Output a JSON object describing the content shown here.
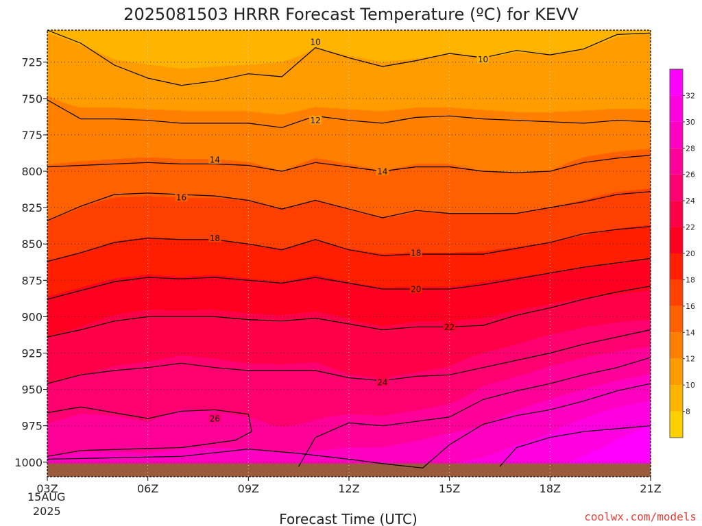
{
  "chart_data": {
    "type": "heatmap",
    "title": "2025081503 HRRR Forecast Temperature (ºC) for KEVV",
    "xlabel": "Forecast Time (UTC)",
    "ylabel": "",
    "credit": "coolwx.com/models",
    "x_ticks": [
      "03Z",
      "06Z",
      "09Z",
      "12Z",
      "15Z",
      "18Z",
      "21Z"
    ],
    "x_first_date": [
      "15AUG",
      "2025"
    ],
    "x_hours": [
      3,
      21
    ],
    "y_ticks": [
      "725",
      "750",
      "775",
      "800",
      "825",
      "850",
      "875",
      "900",
      "925",
      "950",
      "975",
      "1000"
    ],
    "y_range_hpa": [
      703,
      1010
    ],
    "colorbar_ticks": [
      "8",
      "10",
      "12",
      "14",
      "16",
      "18",
      "20",
      "22",
      "24",
      "26",
      "28",
      "30",
      "32"
    ],
    "colorbar_range": [
      6,
      34
    ],
    "contour_levels": [
      10,
      12,
      14,
      16,
      18,
      20,
      22,
      24,
      26,
      28,
      30
    ],
    "contour_labels": [
      {
        "text": "10",
        "hour": 11,
        "p": 711
      },
      {
        "text": "10",
        "hour": 16,
        "p": 723
      },
      {
        "text": "12",
        "hour": 11,
        "p": 765
      },
      {
        "text": "14",
        "hour": 8,
        "p": 792
      },
      {
        "text": "14",
        "hour": 13,
        "p": 800
      },
      {
        "text": "16",
        "hour": 7,
        "p": 818
      },
      {
        "text": "18",
        "hour": 8,
        "p": 846
      },
      {
        "text": "18",
        "hour": 14,
        "p": 856
      },
      {
        "text": "20",
        "hour": 14,
        "p": 881
      },
      {
        "text": "22",
        "hour": 15,
        "p": 907
      },
      {
        "text": "24",
        "hour": 13,
        "p": 945
      },
      {
        "text": "26",
        "hour": 8,
        "p": 970
      }
    ],
    "contours": [
      {
        "level": 10,
        "points": [
          [
            3,
            703
          ],
          [
            4,
            712
          ],
          [
            5,
            727
          ],
          [
            6,
            736
          ],
          [
            7,
            741
          ],
          [
            8,
            738
          ],
          [
            9,
            733
          ],
          [
            10,
            735
          ],
          [
            11,
            715
          ],
          [
            12,
            722
          ],
          [
            13,
            728
          ],
          [
            14,
            724
          ],
          [
            15,
            719
          ],
          [
            16,
            722
          ],
          [
            17,
            717
          ],
          [
            18,
            720
          ],
          [
            19,
            716
          ],
          [
            20,
            706
          ],
          [
            21,
            705
          ]
        ]
      },
      {
        "level": 12,
        "points": [
          [
            3,
            751
          ],
          [
            4,
            764
          ],
          [
            5,
            764
          ],
          [
            6,
            765
          ],
          [
            7,
            767
          ],
          [
            8,
            767
          ],
          [
            9,
            767
          ],
          [
            10,
            770
          ],
          [
            11,
            762
          ],
          [
            12,
            765
          ],
          [
            13,
            767
          ],
          [
            14,
            763
          ],
          [
            15,
            762
          ],
          [
            16,
            764
          ],
          [
            17,
            765
          ],
          [
            18,
            766
          ],
          [
            19,
            767
          ],
          [
            20,
            765
          ],
          [
            21,
            766
          ]
        ]
      },
      {
        "level": 14,
        "points": [
          [
            3,
            797
          ],
          [
            4,
            796
          ],
          [
            5,
            795
          ],
          [
            6,
            794
          ],
          [
            7,
            795
          ],
          [
            8,
            795
          ],
          [
            9,
            796
          ],
          [
            10,
            800
          ],
          [
            11,
            794
          ],
          [
            12,
            797
          ],
          [
            13,
            800
          ],
          [
            14,
            797
          ],
          [
            15,
            797
          ],
          [
            16,
            800
          ],
          [
            17,
            801
          ],
          [
            18,
            800
          ],
          [
            19,
            794
          ],
          [
            20,
            791
          ],
          [
            21,
            789
          ]
        ]
      },
      {
        "level": 16,
        "points": [
          [
            3,
            834
          ],
          [
            4,
            824
          ],
          [
            5,
            816
          ],
          [
            6,
            815
          ],
          [
            7,
            816
          ],
          [
            8,
            817
          ],
          [
            9,
            820
          ],
          [
            10,
            826
          ],
          [
            11,
            820
          ],
          [
            12,
            826
          ],
          [
            13,
            832
          ],
          [
            14,
            827
          ],
          [
            15,
            829
          ],
          [
            16,
            829
          ],
          [
            17,
            829
          ],
          [
            18,
            825
          ],
          [
            19,
            821
          ],
          [
            20,
            816
          ],
          [
            21,
            814
          ]
        ]
      },
      {
        "level": 18,
        "points": [
          [
            3,
            862
          ],
          [
            4,
            856
          ],
          [
            5,
            849
          ],
          [
            6,
            846
          ],
          [
            7,
            847
          ],
          [
            8,
            847
          ],
          [
            9,
            850
          ],
          [
            10,
            854
          ],
          [
            11,
            847
          ],
          [
            12,
            854
          ],
          [
            13,
            858
          ],
          [
            14,
            857
          ],
          [
            15,
            857
          ],
          [
            16,
            857
          ],
          [
            17,
            853
          ],
          [
            18,
            849
          ],
          [
            19,
            843
          ],
          [
            20,
            840
          ],
          [
            21,
            838
          ]
        ]
      },
      {
        "level": 20,
        "points": [
          [
            3,
            888
          ],
          [
            4,
            882
          ],
          [
            5,
            876
          ],
          [
            6,
            873
          ],
          [
            7,
            874
          ],
          [
            8,
            873
          ],
          [
            9,
            875
          ],
          [
            10,
            877
          ],
          [
            11,
            873
          ],
          [
            12,
            877
          ],
          [
            13,
            881
          ],
          [
            14,
            881
          ],
          [
            15,
            881
          ],
          [
            16,
            878
          ],
          [
            17,
            874
          ],
          [
            18,
            870
          ],
          [
            19,
            866
          ],
          [
            20,
            863
          ],
          [
            21,
            860
          ]
        ]
      },
      {
        "level": 22,
        "points": [
          [
            3,
            914
          ],
          [
            4,
            909
          ],
          [
            5,
            903
          ],
          [
            6,
            900
          ],
          [
            7,
            900
          ],
          [
            8,
            900
          ],
          [
            9,
            902
          ],
          [
            10,
            903
          ],
          [
            11,
            901
          ],
          [
            12,
            905
          ],
          [
            13,
            909
          ],
          [
            14,
            907
          ],
          [
            15,
            907
          ],
          [
            16,
            906
          ],
          [
            17,
            899
          ],
          [
            18,
            894
          ],
          [
            19,
            888
          ],
          [
            20,
            883
          ],
          [
            21,
            879
          ]
        ]
      },
      {
        "level": 24,
        "points": [
          [
            3,
            946
          ],
          [
            4,
            940
          ],
          [
            5,
            937
          ],
          [
            6,
            935
          ],
          [
            7,
            932
          ],
          [
            8,
            935
          ],
          [
            9,
            937
          ],
          [
            10,
            937
          ],
          [
            11,
            937
          ],
          [
            12,
            942
          ],
          [
            13,
            944
          ],
          [
            14,
            941
          ],
          [
            15,
            940
          ],
          [
            16,
            935
          ],
          [
            17,
            930
          ],
          [
            18,
            925
          ],
          [
            19,
            919
          ],
          [
            20,
            914
          ],
          [
            21,
            909
          ]
        ]
      },
      {
        "level": 26,
        "points": [
          [
            3,
            966
          ],
          [
            4,
            962
          ],
          [
            5,
            966
          ],
          [
            6,
            970
          ],
          [
            7,
            965
          ],
          [
            8,
            964
          ],
          [
            9,
            967
          ],
          [
            9.1,
            979
          ],
          [
            8.6,
            985
          ],
          [
            7,
            990
          ],
          [
            5.5,
            991
          ],
          [
            4,
            992
          ],
          [
            3,
            996
          ]
        ]
      },
      {
        "level": 26,
        "points": [
          [
            10.5,
            1003
          ],
          [
            11,
            983
          ],
          [
            12,
            973
          ],
          [
            13,
            975
          ],
          [
            14,
            972
          ],
          [
            15,
            969
          ],
          [
            16,
            957
          ],
          [
            17,
            951
          ],
          [
            18,
            946
          ],
          [
            19,
            940
          ],
          [
            20,
            935
          ],
          [
            21,
            928
          ]
        ]
      },
      {
        "level": 28,
        "points": [
          [
            3,
            998
          ],
          [
            5,
            997
          ],
          [
            7,
            996
          ],
          [
            9,
            991
          ],
          [
            10.5,
            994
          ],
          [
            12,
            998
          ],
          [
            13,
            1001
          ],
          [
            14.2,
            1004
          ],
          [
            15,
            988
          ],
          [
            16,
            974
          ],
          [
            17,
            968
          ],
          [
            18,
            964
          ],
          [
            19,
            958
          ],
          [
            20,
            951
          ],
          [
            21,
            946
          ]
        ]
      },
      {
        "level": 30,
        "points": [
          [
            16.5,
            1003
          ],
          [
            17,
            990
          ],
          [
            18,
            983
          ],
          [
            19,
            979
          ],
          [
            20,
            977
          ],
          [
            21,
            975
          ]
        ]
      }
    ],
    "field": {
      "hours": [
        3,
        4,
        5,
        6,
        7,
        8,
        9,
        10,
        11,
        12,
        13,
        14,
        15,
        16,
        17,
        18,
        19,
        20,
        21
      ],
      "pressure_hpa": [
        705,
        725,
        750,
        775,
        800,
        825,
        850,
        875,
        900,
        925,
        950,
        975,
        1000
      ],
      "temperature_c": [
        [
          10.0,
          9.6,
          9.1,
          8.8,
          8.6,
          8.7,
          8.9,
          8.9,
          9.6,
          9.3,
          9.1,
          9.3,
          9.5,
          9.4,
          9.6,
          9.4,
          9.6,
          9.9,
          10.0
        ],
        [
          11.0,
          10.6,
          10.1,
          9.9,
          9.7,
          9.8,
          9.9,
          10.0,
          10.4,
          10.2,
          10.0,
          10.1,
          10.2,
          10.1,
          10.2,
          10.2,
          10.3,
          10.6,
          10.7
        ],
        [
          12.1,
          11.6,
          11.6,
          11.5,
          11.4,
          11.4,
          11.4,
          11.2,
          11.6,
          11.5,
          11.4,
          11.6,
          11.6,
          11.5,
          11.4,
          11.4,
          11.4,
          11.5,
          11.4
        ],
        [
          13.1,
          13.2,
          13.2,
          13.2,
          13.2,
          13.2,
          13.1,
          13.0,
          13.3,
          13.2,
          13.1,
          13.2,
          13.2,
          13.1,
          13.0,
          13.0,
          13.2,
          13.3,
          13.4
        ],
        [
          14.2,
          14.3,
          14.4,
          14.5,
          14.4,
          14.4,
          14.3,
          14.0,
          14.4,
          14.2,
          14.0,
          14.2,
          14.2,
          14.0,
          13.9,
          14.0,
          14.5,
          14.8,
          15.0
        ],
        [
          15.4,
          16.0,
          16.6,
          16.7,
          16.6,
          16.6,
          16.4,
          15.9,
          16.4,
          15.9,
          15.4,
          15.8,
          15.7,
          15.7,
          15.7,
          16.0,
          16.4,
          16.9,
          17.1
        ],
        [
          17.0,
          17.5,
          18.1,
          18.3,
          18.2,
          18.2,
          18.0,
          17.7,
          18.2,
          17.7,
          17.4,
          17.5,
          17.5,
          17.5,
          17.8,
          18.1,
          18.5,
          18.8,
          19.0
        ],
        [
          19.1,
          19.6,
          20.1,
          20.3,
          20.2,
          20.3,
          20.1,
          19.9,
          20.3,
          19.9,
          19.6,
          19.6,
          19.6,
          19.9,
          20.2,
          20.5,
          20.8,
          21.0,
          21.3
        ],
        [
          21.1,
          21.6,
          22.1,
          22.4,
          22.4,
          22.4,
          22.2,
          22.1,
          22.3,
          21.9,
          21.6,
          21.8,
          21.8,
          21.9,
          22.4,
          22.8,
          23.3,
          23.6,
          23.8
        ],
        [
          22.7,
          23.1,
          23.5,
          23.7,
          23.9,
          23.8,
          23.6,
          23.6,
          23.7,
          23.3,
          23.1,
          23.3,
          23.4,
          24.0,
          24.5,
          25.2,
          25.7,
          26.1,
          26.5
        ],
        [
          24.2,
          24.6,
          24.9,
          25.0,
          25.3,
          25.1,
          25.0,
          24.9,
          24.9,
          24.5,
          24.4,
          24.6,
          25.0,
          26.2,
          26.8,
          27.4,
          28.0,
          28.6,
          29.1
        ],
        [
          26.1,
          26.7,
          26.4,
          26.1,
          26.6,
          26.6,
          26.3,
          25.9,
          26.2,
          26.7,
          26.6,
          27.0,
          27.5,
          28.0,
          28.9,
          29.6,
          30.5,
          31.4,
          32.1
        ],
        [
          28.3,
          28.5,
          28.6,
          28.6,
          28.8,
          28.9,
          29.0,
          28.8,
          28.8,
          28.9,
          29.0,
          29.4,
          29.9,
          30.3,
          31.0,
          31.6,
          32.3,
          33.0,
          33.5
        ]
      ]
    },
    "color_scale": [
      {
        "t": 6,
        "color": "#ffd000"
      },
      {
        "t": 8,
        "color": "#ffb400"
      },
      {
        "t": 10,
        "color": "#ff9c00"
      },
      {
        "t": 12,
        "color": "#ff8000"
      },
      {
        "t": 14,
        "color": "#ff6000"
      },
      {
        "t": 16,
        "color": "#ff4000"
      },
      {
        "t": 18,
        "color": "#ff1e00"
      },
      {
        "t": 20,
        "color": "#ff0020"
      },
      {
        "t": 22,
        "color": "#ff0048"
      },
      {
        "t": 24,
        "color": "#ff0070"
      },
      {
        "t": 26,
        "color": "#ff0098"
      },
      {
        "t": 28,
        "color": "#ff00c0"
      },
      {
        "t": 30,
        "color": "#ff00e0"
      },
      {
        "t": 32,
        "color": "#ff00ff"
      },
      {
        "t": 34,
        "color": "#ff00ff"
      }
    ],
    "ground": {
      "color": "#9b5a3c",
      "p_from": 1001
    },
    "grid": "dotted",
    "legend": "right colorbar"
  }
}
